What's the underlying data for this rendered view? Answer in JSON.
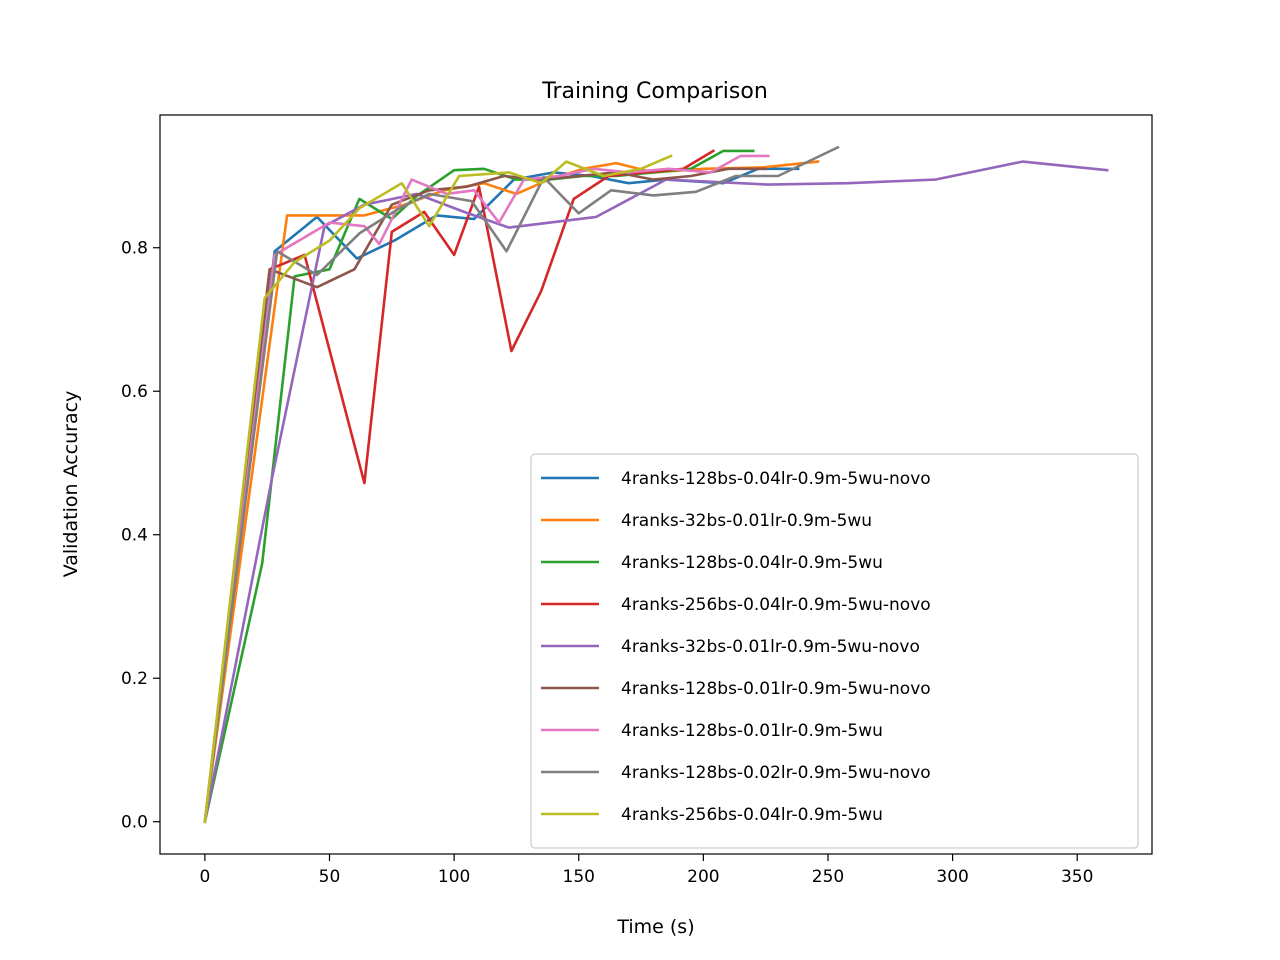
{
  "chart_data": {
    "type": "line",
    "title": "Training Comparison",
    "xlabel": "Time (s)",
    "ylabel": "Validation Accuracy",
    "xlim": [
      -18,
      380
    ],
    "ylim": [
      -0.045,
      0.985
    ],
    "xticks": [
      0,
      50,
      100,
      150,
      200,
      250,
      300,
      350
    ],
    "yticks": [
      0.0,
      0.2,
      0.4,
      0.6,
      0.8
    ],
    "grid": false,
    "legend_position": "lower-right",
    "series": [
      {
        "name": "4ranks-128bs-0.04lr-0.9m-5wu-novo",
        "color": "#1f77b4",
        "points": [
          [
            0,
            0.0
          ],
          [
            28,
            0.795
          ],
          [
            45,
            0.843
          ],
          [
            61,
            0.785
          ],
          [
            76,
            0.81
          ],
          [
            93,
            0.845
          ],
          [
            108,
            0.84
          ],
          [
            124,
            0.895
          ],
          [
            140,
            0.905
          ],
          [
            155,
            0.9
          ],
          [
            170,
            0.89
          ],
          [
            185,
            0.895
          ],
          [
            208,
            0.89
          ],
          [
            222,
            0.91
          ],
          [
            238,
            0.91
          ]
        ]
      },
      {
        "name": "4ranks-32bs-0.01lr-0.9m-5wu",
        "color": "#ff7f0e",
        "points": [
          [
            0,
            0.0
          ],
          [
            33,
            0.845
          ],
          [
            50,
            0.845
          ],
          [
            64,
            0.845
          ],
          [
            80,
            0.86
          ],
          [
            96,
            0.88
          ],
          [
            112,
            0.89
          ],
          [
            125,
            0.875
          ],
          [
            138,
            0.895
          ],
          [
            152,
            0.91
          ],
          [
            165,
            0.918
          ],
          [
            180,
            0.905
          ],
          [
            200,
            0.91
          ],
          [
            224,
            0.912
          ],
          [
            246,
            0.92
          ]
        ]
      },
      {
        "name": "4ranks-128bs-0.04lr-0.9m-5wu",
        "color": "#2ca02c",
        "points": [
          [
            0,
            0.0
          ],
          [
            23,
            0.36
          ],
          [
            36,
            0.76
          ],
          [
            50,
            0.77
          ],
          [
            62,
            0.868
          ],
          [
            75,
            0.84
          ],
          [
            85,
            0.872
          ],
          [
            100,
            0.908
          ],
          [
            112,
            0.91
          ],
          [
            125,
            0.895
          ],
          [
            138,
            0.895
          ],
          [
            152,
            0.9
          ],
          [
            165,
            0.9
          ],
          [
            180,
            0.905
          ],
          [
            195,
            0.91
          ],
          [
            208,
            0.935
          ],
          [
            220,
            0.935
          ]
        ]
      },
      {
        "name": "4ranks-256bs-0.04lr-0.9m-5wu-novo",
        "color": "#d62728",
        "points": [
          [
            0,
            0.0
          ],
          [
            26,
            0.77
          ],
          [
            40,
            0.79
          ],
          [
            64,
            0.472
          ],
          [
            75,
            0.822
          ],
          [
            88,
            0.85
          ],
          [
            100,
            0.79
          ],
          [
            110,
            0.885
          ],
          [
            123,
            0.656
          ],
          [
            135,
            0.74
          ],
          [
            148,
            0.868
          ],
          [
            162,
            0.9
          ],
          [
            176,
            0.905
          ],
          [
            192,
            0.91
          ],
          [
            204,
            0.935
          ]
        ]
      },
      {
        "name": "4ranks-32bs-0.01lr-0.9m-5wu-novo",
        "color": "#9467bd",
        "points": [
          [
            0,
            0.0
          ],
          [
            27,
            0.48
          ],
          [
            48,
            0.83
          ],
          [
            64,
            0.86
          ],
          [
            85,
            0.875
          ],
          [
            104,
            0.85
          ],
          [
            122,
            0.828
          ],
          [
            157,
            0.843
          ],
          [
            185,
            0.895
          ],
          [
            226,
            0.888
          ],
          [
            258,
            0.89
          ],
          [
            293,
            0.895
          ],
          [
            328,
            0.92
          ],
          [
            362,
            0.908
          ]
        ]
      },
      {
        "name": "4ranks-128bs-0.01lr-0.9m-5wu-novo",
        "color": "#8c564b",
        "points": [
          [
            0,
            0.0
          ],
          [
            26,
            0.77
          ],
          [
            45,
            0.745
          ],
          [
            60,
            0.77
          ],
          [
            75,
            0.86
          ],
          [
            90,
            0.88
          ],
          [
            105,
            0.885
          ],
          [
            120,
            0.9
          ],
          [
            135,
            0.895
          ],
          [
            150,
            0.9
          ],
          [
            165,
            0.905
          ],
          [
            180,
            0.895
          ],
          [
            195,
            0.9
          ],
          [
            210,
            0.91
          ],
          [
            225,
            0.91
          ]
        ]
      },
      {
        "name": "4ranks-128bs-0.01lr-0.9m-5wu",
        "color": "#e377c2",
        "points": [
          [
            0,
            0.0
          ],
          [
            28,
            0.79
          ],
          [
            50,
            0.835
          ],
          [
            64,
            0.83
          ],
          [
            70,
            0.805
          ],
          [
            83,
            0.895
          ],
          [
            97,
            0.875
          ],
          [
            108,
            0.88
          ],
          [
            118,
            0.835
          ],
          [
            128,
            0.895
          ],
          [
            142,
            0.9
          ],
          [
            156,
            0.91
          ],
          [
            170,
            0.905
          ],
          [
            186,
            0.91
          ],
          [
            203,
            0.905
          ],
          [
            215,
            0.928
          ],
          [
            226,
            0.928
          ]
        ]
      },
      {
        "name": "4ranks-128bs-0.02lr-0.9m-5wu-novo",
        "color": "#7f7f7f",
        "points": [
          [
            0,
            0.0
          ],
          [
            29,
            0.795
          ],
          [
            45,
            0.762
          ],
          [
            62,
            0.82
          ],
          [
            78,
            0.855
          ],
          [
            90,
            0.875
          ],
          [
            107,
            0.865
          ],
          [
            121,
            0.795
          ],
          [
            136,
            0.898
          ],
          [
            150,
            0.848
          ],
          [
            163,
            0.88
          ],
          [
            180,
            0.873
          ],
          [
            197,
            0.878
          ],
          [
            213,
            0.9
          ],
          [
            230,
            0.9
          ],
          [
            254,
            0.94
          ]
        ]
      },
      {
        "name": "4ranks-256bs-0.04lr-0.9m-5wu",
        "color": "#bcbd22",
        "points": [
          [
            0,
            0.0
          ],
          [
            24,
            0.73
          ],
          [
            36,
            0.78
          ],
          [
            50,
            0.81
          ],
          [
            62,
            0.855
          ],
          [
            79,
            0.89
          ],
          [
            90,
            0.83
          ],
          [
            102,
            0.9
          ],
          [
            122,
            0.905
          ],
          [
            135,
            0.89
          ],
          [
            145,
            0.92
          ],
          [
            160,
            0.9
          ],
          [
            175,
            0.91
          ],
          [
            187,
            0.928
          ]
        ]
      }
    ]
  }
}
